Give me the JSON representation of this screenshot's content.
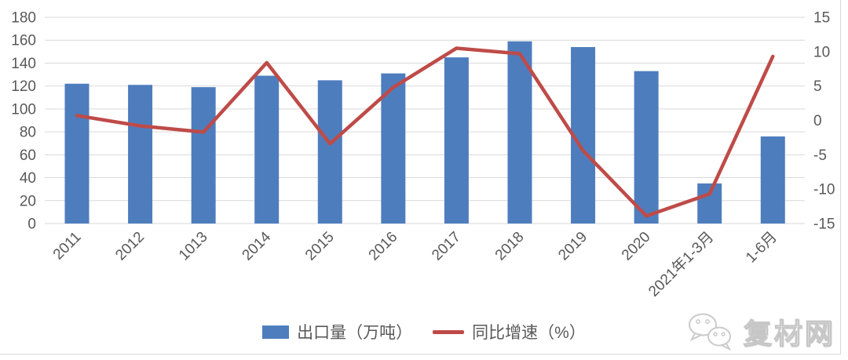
{
  "chart_data": {
    "type": "combo",
    "categories": [
      "2011",
      "2012",
      "1013",
      "2014",
      "2015",
      "2016",
      "2017",
      "2018",
      "2019",
      "2020",
      "2021年1-3月",
      "1-6月"
    ],
    "series": [
      {
        "name": "出口量（万吨）",
        "type": "bar",
        "axis": "left",
        "color": "#4e7dbe",
        "values": [
          122,
          121,
          119,
          129,
          125,
          131,
          145,
          159,
          154,
          133,
          35,
          76
        ]
      },
      {
        "name": "同比增速（%）",
        "type": "line",
        "axis": "right",
        "color": "#be4b48",
        "values": [
          0.7,
          -0.8,
          -1.7,
          8.4,
          -3.4,
          4.8,
          10.5,
          9.7,
          -4.4,
          -13.9,
          -10.7,
          9.3
        ]
      }
    ],
    "left_axis": {
      "min": 0,
      "max": 180,
      "step": 20,
      "ticks": [
        "0",
        "20",
        "40",
        "60",
        "80",
        "100",
        "120",
        "140",
        "160",
        "180"
      ]
    },
    "right_axis": {
      "min": -15,
      "max": 15,
      "step": 5,
      "ticks": [
        "-15",
        "-10",
        "-5",
        "0",
        "5",
        "10",
        "15"
      ]
    },
    "title": "",
    "xlabel": "",
    "ylabel": "",
    "grid": true,
    "legend_position": "bottom"
  },
  "watermark": {
    "text": "复材网"
  },
  "colors": {
    "bar": "#4e7dbe",
    "line": "#be4b48",
    "grid": "#d9d9d9",
    "axis_text": "#595959",
    "frame_border": "#d9d9d9",
    "background": "#ffffff"
  }
}
